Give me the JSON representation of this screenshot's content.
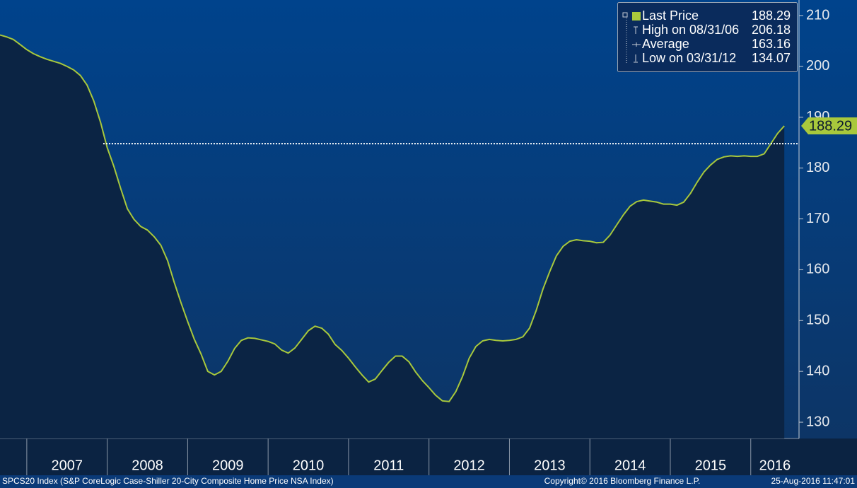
{
  "chart_data": {
    "type": "line",
    "series": [
      {
        "name": "Last Price",
        "color": "#a8c83c",
        "x": [
          2006.667,
          2006.75,
          2006.833,
          2006.917,
          2007.0,
          2007.083,
          2007.167,
          2007.25,
          2007.333,
          2007.417,
          2007.5,
          2007.583,
          2007.667,
          2007.75,
          2007.833,
          2007.917,
          2008.0,
          2008.083,
          2008.167,
          2008.25,
          2008.333,
          2008.417,
          2008.5,
          2008.583,
          2008.667,
          2008.75,
          2008.833,
          2008.917,
          2009.0,
          2009.083,
          2009.167,
          2009.25,
          2009.333,
          2009.417,
          2009.5,
          2009.583,
          2009.667,
          2009.75,
          2009.833,
          2009.917,
          2010.0,
          2010.083,
          2010.167,
          2010.25,
          2010.333,
          2010.417,
          2010.5,
          2010.583,
          2010.667,
          2010.75,
          2010.833,
          2010.917,
          2011.0,
          2011.083,
          2011.167,
          2011.25,
          2011.333,
          2011.417,
          2011.5,
          2011.583,
          2011.667,
          2011.75,
          2011.833,
          2011.917,
          2012.0,
          2012.083,
          2012.167,
          2012.25,
          2012.333,
          2012.417,
          2012.5,
          2012.583,
          2012.667,
          2012.75,
          2012.833,
          2012.917,
          2013.0,
          2013.083,
          2013.167,
          2013.25,
          2013.333,
          2013.417,
          2013.5,
          2013.583,
          2013.667,
          2013.75,
          2013.833,
          2013.917,
          2014.0,
          2014.083,
          2014.167,
          2014.25,
          2014.333,
          2014.417,
          2014.5,
          2014.583,
          2014.667,
          2014.75,
          2014.833,
          2014.917,
          2015.0,
          2015.083,
          2015.167,
          2015.25,
          2015.333,
          2015.417,
          2015.5,
          2015.583,
          2015.667,
          2015.75,
          2015.833,
          2015.917,
          2016.0,
          2016.083,
          2016.167,
          2016.25,
          2016.333,
          2016.417
        ],
        "values": [
          206.18,
          205.8,
          205.3,
          204.3,
          203.3,
          202.5,
          201.9,
          201.4,
          201.0,
          200.6,
          200.0,
          199.3,
          198.2,
          196.3,
          193.2,
          189.0,
          184.0,
          180.3,
          176.0,
          172.0,
          169.9,
          168.5,
          167.8,
          166.5,
          164.8,
          161.8,
          157.5,
          153.5,
          149.8,
          146.3,
          143.4,
          140.0,
          139.3,
          140.0,
          142.0,
          144.5,
          146.1,
          146.6,
          146.5,
          146.2,
          145.9,
          145.4,
          144.2,
          143.6,
          144.6,
          146.3,
          148.0,
          148.9,
          148.5,
          147.3,
          145.3,
          144.1,
          142.6,
          140.9,
          139.3,
          137.9,
          138.5,
          140.2,
          141.8,
          143.0,
          143.0,
          141.9,
          139.9,
          138.2,
          136.8,
          135.3,
          134.2,
          134.07,
          136.0,
          139.0,
          142.6,
          144.9,
          146.0,
          146.3,
          146.1,
          146.0,
          146.1,
          146.3,
          146.8,
          148.5,
          152.0,
          156.2,
          159.6,
          162.7,
          164.6,
          165.6,
          165.9,
          165.7,
          165.6,
          165.3,
          165.4,
          166.8,
          168.8,
          170.8,
          172.5,
          173.4,
          173.7,
          173.5,
          173.3,
          172.9,
          172.9,
          172.7,
          173.3,
          175.0,
          177.2,
          179.2,
          180.6,
          181.7,
          182.2,
          182.4,
          182.3,
          182.4,
          182.3,
          182.3,
          182.8,
          184.8,
          186.8,
          188.29
        ]
      }
    ],
    "legend_stats": [
      {
        "label": "High on 08/31/06",
        "value": 206.18
      },
      {
        "label": "Average",
        "value": 163.16
      },
      {
        "label": "Low on 03/31/12",
        "value": 134.07
      }
    ],
    "reference_line": {
      "value": 184.8,
      "x_start": 2007.95
    },
    "xlim": [
      2006.667,
      2016.6
    ],
    "xticks": [
      2007,
      2008,
      2009,
      2010,
      2011,
      2012,
      2013,
      2014,
      2015,
      2016
    ],
    "ylim": [
      126.8,
      213.06
    ],
    "yticks": [
      130,
      140,
      150,
      160,
      170,
      180,
      190,
      200,
      210
    ],
    "area_fill": "#0b2444",
    "footer": {
      "left": "SPCS20 Index (S&P CoreLogic Case-Shiller 20-City Composite Home Price NSA Index)",
      "center": "Copyright© 2016 Bloomberg Finance L.P.",
      "right": "25-Aug-2016 11:47:01"
    }
  }
}
